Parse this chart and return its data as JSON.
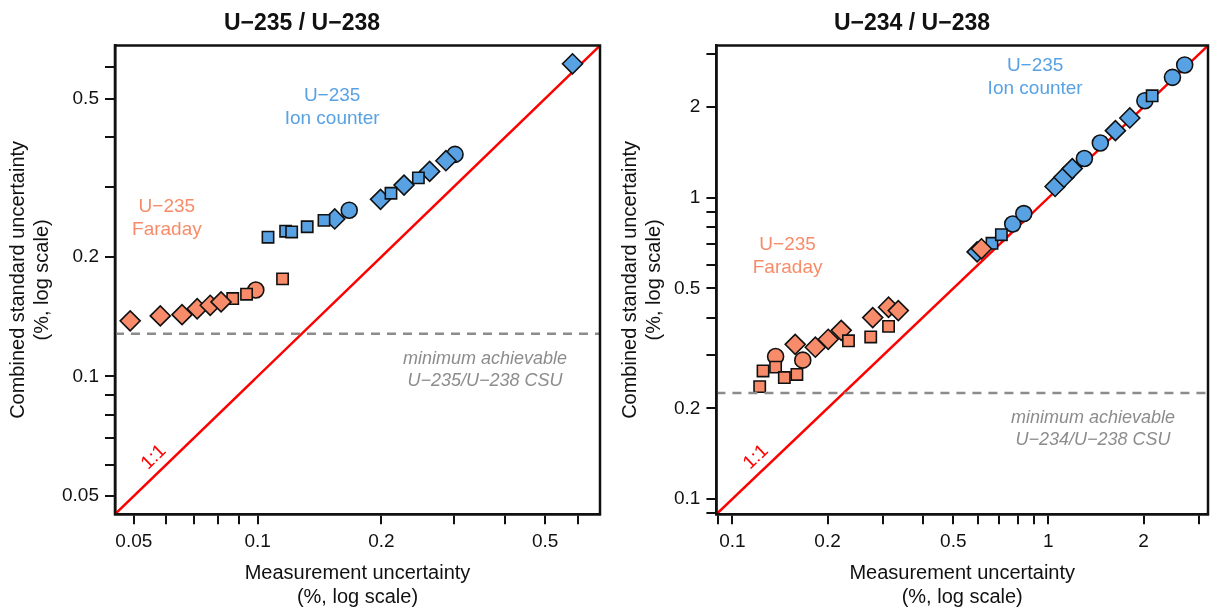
{
  "chart_data": [
    {
      "type": "scatter",
      "title": "U−235 / U−238",
      "xlabel": "Measurement uncertainty\n(%, log scale)",
      "ylabel": "Combined standard uncertainty\n(%, log scale)",
      "log": "xy",
      "grid": false,
      "legend": false,
      "xlim": [
        0.045,
        0.68
      ],
      "ylim": [
        0.045,
        0.68
      ],
      "xticks": [
        0.05,
        {
          "value": 0.06,
          "label": null
        },
        {
          "value": 0.07,
          "label": null
        },
        {
          "value": 0.08,
          "label": null
        },
        {
          "value": 0.09,
          "label": null
        },
        0.1,
        0.2,
        {
          "value": 0.3,
          "label": null
        },
        {
          "value": 0.4,
          "label": null
        },
        0.5,
        {
          "value": 0.6,
          "label": null
        }
      ],
      "yticks": [
        0.05,
        {
          "value": 0.06,
          "label": null
        },
        {
          "value": 0.07,
          "label": null
        },
        {
          "value": 0.08,
          "label": null
        },
        {
          "value": 0.09,
          "label": null
        },
        0.1,
        0.2,
        {
          "value": 0.3,
          "label": null
        },
        {
          "value": 0.4,
          "label": null
        },
        0.5,
        {
          "value": 0.6,
          "label": null
        }
      ],
      "ref_lines": [
        {
          "axis": "y",
          "value": 0.128,
          "label": "minimum achievable\nU−235/U−238 CSU",
          "color": "#8c8c8c",
          "line_style": "dashed"
        }
      ],
      "series": [
        {
          "type": "line",
          "name": "1:1",
          "color": "#ff0000",
          "marker": "none",
          "x": [
            0.045,
            0.68
          ],
          "values": [
            0.045,
            0.68
          ]
        },
        {
          "marker": "diamond",
          "name": "U−235\nFaraday",
          "color": "#f88c6a",
          "x": [
            0.049,
            0.058,
            0.0655,
            0.0713,
            0.0767,
            0.0815
          ],
          "values": [
            0.138,
            0.142,
            0.143,
            0.148,
            0.151,
            0.154
          ]
        },
        {
          "marker": "square",
          "color": "#f88c6a",
          "x": [
            0.087,
            0.094,
            0.115
          ],
          "values": [
            0.157,
            0.161,
            0.176
          ]
        },
        {
          "marker": "circle",
          "color": "#f88c6a",
          "x": [
            0.099
          ],
          "values": [
            0.165
          ]
        },
        {
          "marker": "square",
          "name": "U−235\nIon counter",
          "color": "#58a2e4",
          "x": [
            0.106,
            0.117,
            0.121,
            0.132,
            0.145,
            0.211,
            0.246
          ],
          "values": [
            0.224,
            0.232,
            0.231,
            0.238,
            0.247,
            0.289,
            0.316
          ]
        },
        {
          "marker": "diamond",
          "color": "#58a2e4",
          "x": [
            0.154,
            0.199,
            0.227,
            0.262,
            0.287,
            0.583
          ],
          "values": [
            0.249,
            0.279,
            0.303,
            0.328,
            0.349,
            0.612
          ]
        },
        {
          "marker": "circle",
          "color": "#58a2e4",
          "x": [
            0.167,
            0.302
          ],
          "values": [
            0.262,
            0.362
          ]
        }
      ]
    },
    {
      "type": "scatter",
      "title": "U−234 / U−238",
      "xlabel": "Measurement uncertainty\n(%, log scale)",
      "ylabel": "Combined standard uncertainty\n(%, log scale)",
      "log": "xy",
      "grid": false,
      "legend": false,
      "xlim": [
        0.089,
        3.2
      ],
      "ylim": [
        0.089,
        3.2
      ],
      "xticks": [
        {
          "value": 0.09,
          "label": null
        },
        0.1,
        0.2,
        {
          "value": 0.3,
          "label": null
        },
        {
          "value": 0.4,
          "label": null
        },
        0.5,
        {
          "value": 0.6,
          "label": null
        },
        {
          "value": 0.7,
          "label": null
        },
        {
          "value": 0.8,
          "label": null
        },
        {
          "value": 0.9,
          "label": null
        },
        1,
        2,
        {
          "value": 3,
          "label": null
        }
      ],
      "yticks": [
        {
          "value": 0.09,
          "label": null
        },
        0.1,
        0.2,
        {
          "value": 0.3,
          "label": null
        },
        {
          "value": 0.4,
          "label": null
        },
        0.5,
        {
          "value": 0.6,
          "label": null
        },
        {
          "value": 0.7,
          "label": null
        },
        {
          "value": 0.8,
          "label": null
        },
        {
          "value": 0.9,
          "label": null
        },
        1,
        2,
        {
          "value": 3,
          "label": null
        }
      ],
      "ref_lines": [
        {
          "axis": "y",
          "value": 0.225,
          "label": "minimum achievable\nU−234/U−238 CSU",
          "color": "#8c8c8c",
          "line_style": "dashed"
        }
      ],
      "series": [
        {
          "type": "line",
          "name": "1:1",
          "color": "#ff0000",
          "marker": "none",
          "x": [
            0.089,
            3.2
          ],
          "values": [
            0.089,
            3.2
          ]
        },
        {
          "marker": "square",
          "name": "U−235\nFaraday",
          "color": "#f88c6a",
          "x": [
            0.122,
            0.125,
            0.137,
            0.146,
            0.16,
            0.233,
            0.274,
            0.312
          ],
          "values": [
            0.236,
            0.266,
            0.274,
            0.253,
            0.259,
            0.335,
            0.345,
            0.374
          ]
        },
        {
          "marker": "circle",
          "color": "#f88c6a",
          "x": [
            0.137,
            0.167
          ],
          "values": [
            0.297,
            0.289
          ]
        },
        {
          "marker": "diamond",
          "color": "#f88c6a",
          "x": [
            0.158,
            0.183,
            0.201,
            0.221,
            0.278,
            0.312,
            0.335,
            0.614
          ],
          "values": [
            0.326,
            0.319,
            0.339,
            0.363,
            0.4,
            0.433,
            0.422,
            0.677
          ]
        },
        {
          "marker": "diamond",
          "name": "U−235\nIon counter",
          "color": "#58a2e4",
          "x": [
            0.595,
            1.05,
            1.12,
            1.19,
            1.63,
            1.81
          ],
          "values": [
            0.661,
            1.09,
            1.17,
            1.25,
            1.67,
            1.84
          ]
        },
        {
          "marker": "square",
          "color": "#58a2e4",
          "x": [
            0.663,
            0.71,
            2.13
          ],
          "values": [
            0.706,
            0.754,
            2.18
          ]
        },
        {
          "marker": "circle",
          "color": "#58a2e4",
          "x": [
            0.771,
            0.836,
            1.3,
            1.46,
            2.02,
            2.47,
            2.7
          ],
          "values": [
            0.818,
            0.886,
            1.35,
            1.52,
            2.1,
            2.51,
            2.76
          ]
        }
      ]
    }
  ]
}
